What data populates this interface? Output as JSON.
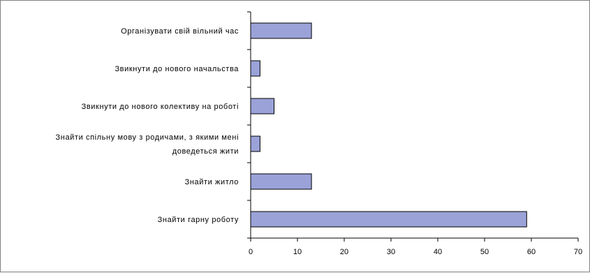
{
  "chart_data": {
    "type": "bar",
    "orientation": "horizontal",
    "categories": [
      "Організувати свій вільний час",
      "Звикнути до нового начальства",
      "Звикнути до нового колективу на роботі",
      "Знайти спільну мову з родичами, з якими мені доведеться жити",
      "Знайти житло",
      "Знайти гарну роботу"
    ],
    "category_lines": [
      [
        "Організувати свій вільний час"
      ],
      [
        "Звикнути до нового начальства"
      ],
      [
        "Звикнути до нового колективу на роботі"
      ],
      [
        "Знайти спільну мову з родичами, з якими мені",
        "доведеться жити"
      ],
      [
        "Знайти житло"
      ],
      [
        "Знайти гарну роботу"
      ]
    ],
    "values": [
      13,
      2,
      5,
      2,
      13,
      59
    ],
    "xlim": [
      0,
      70
    ],
    "xticks": [
      "0",
      "10",
      "20",
      "30",
      "40",
      "50",
      "60",
      "70"
    ],
    "title": "",
    "xlabel": "",
    "ylabel": "",
    "grid": false,
    "legend": "none",
    "bar_color": "#9aa2d8",
    "bar_edge_color": "#000000"
  }
}
